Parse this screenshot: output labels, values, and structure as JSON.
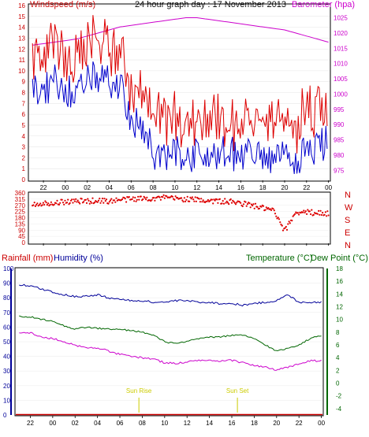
{
  "header": {
    "title": "24 hour graph day : 17 November 2013",
    "left_axis_label": "Windspeed (m/s)",
    "right_axis_label": "Barometer (hpa)"
  },
  "dir_labels": [
    "N",
    "W",
    "S",
    "E",
    "N"
  ],
  "bottom": {
    "rain_label": "Rainfall (mm)",
    "humidity_label": "Humidity (%)",
    "temp_label": "Temperature (°C)",
    "dew_label": "Dew Point (°C)",
    "sunrise_label": "Sun Rise",
    "sunset_label": "Sun Set"
  },
  "colors": {
    "wind_avg": "#0000cc",
    "wind_gust": "#dd0000",
    "barometer": "#cc00cc",
    "direction": "#dd0000",
    "humidity": "#000099",
    "temperature": "#006600",
    "dewpoint": "#cc00cc",
    "rainfall": "#cc0000",
    "sun": "#cccc00"
  },
  "x_tick_labels": [
    "22",
    "00",
    "02",
    "04",
    "06",
    "08",
    "10",
    "12",
    "14",
    "16",
    "18",
    "20",
    "22",
    "00"
  ],
  "chart_data": [
    {
      "type": "line",
      "title": "24 hour graph day : 17 November 2013",
      "ylabel": "Windspeed (m/s)",
      "y2label": "Barometer (hpa)",
      "ylim": [
        0,
        16
      ],
      "y_ticks": [
        0,
        1,
        2,
        3,
        4,
        5,
        6,
        7,
        8,
        9,
        10,
        11,
        12,
        13,
        14,
        15,
        16
      ],
      "y2lim": [
        972,
        1029
      ],
      "y2_ticks": [
        975,
        980,
        985,
        990,
        995,
        1000,
        1005,
        1010,
        1015,
        1020,
        1025
      ],
      "x_hours": [
        -3,
        -2,
        -1,
        0,
        1,
        2,
        3,
        4,
        5,
        6,
        7,
        8,
        9,
        10,
        11,
        12,
        13,
        14,
        15,
        16,
        17,
        18,
        19,
        20,
        21,
        22,
        23,
        24
      ],
      "series": [
        {
          "name": "Windspeed (m/s)",
          "values": [
            8.5,
            8,
            9,
            8.5,
            7.5,
            9,
            9.5,
            9,
            8.5,
            5.5,
            4.5,
            2.5,
            2,
            2.5,
            2,
            2.5,
            2,
            2.5,
            2.5,
            2,
            2.5,
            2,
            1.5,
            2,
            2,
            2.5,
            3,
            3.5
          ]
        },
        {
          "name": "Barometer (hpa)",
          "values": [
            1016,
            1016.5,
            1017,
            1017.5,
            1018,
            1019,
            1020,
            1021,
            1022,
            1022.5,
            1023,
            1023.5,
            1024,
            1024.5,
            1025,
            1025,
            1024.5,
            1024,
            1023.5,
            1023,
            1022.5,
            1022,
            1021.5,
            1021,
            1020,
            1019,
            1018,
            1017
          ]
        }
      ]
    },
    {
      "type": "scatter",
      "title": "",
      "ylabel": "",
      "ylim": [
        0,
        360
      ],
      "y_ticks": [
        0,
        45,
        90,
        135,
        180,
        225,
        270,
        315,
        360
      ],
      "series": [
        {
          "name": "",
          "hours": [
            -3,
            -2,
            -1,
            0,
            1,
            2,
            3,
            4,
            5,
            6,
            7,
            8,
            9,
            10,
            11,
            12,
            13,
            14,
            15,
            16,
            17,
            18,
            19,
            20,
            21,
            22,
            23,
            24
          ],
          "values": [
            280,
            285,
            290,
            295,
            300,
            300,
            305,
            300,
            310,
            315,
            320,
            320,
            325,
            320,
            315,
            310,
            305,
            300,
            295,
            285,
            270,
            250,
            230,
            80,
            220,
            220,
            215,
            210
          ]
        }
      ]
    },
    {
      "type": "line",
      "title": "",
      "ylabel": "Rainfall (mm) / Humidity (%)",
      "ylim": [
        0,
        100
      ],
      "y_ticks": [
        0,
        10,
        20,
        30,
        40,
        50,
        60,
        70,
        80,
        90,
        100
      ],
      "y2label": "Temperature (°C) / Dew Point (°C)",
      "y2lim": [
        -5,
        18
      ],
      "y2_ticks": [
        -4,
        -2,
        0,
        2,
        4,
        6,
        8,
        10,
        12,
        14,
        16,
        18
      ],
      "x_hours": [
        -3,
        -2,
        -1,
        0,
        1,
        2,
        3,
        4,
        5,
        6,
        7,
        8,
        9,
        10,
        11,
        12,
        13,
        14,
        15,
        16,
        17,
        18,
        19,
        20,
        21,
        22,
        23,
        24
      ],
      "series": [
        {
          "name": "Humidity (%)",
          "values": [
            89,
            88,
            86,
            84,
            82,
            81,
            81,
            82,
            80,
            79,
            78,
            78,
            77,
            77,
            78,
            78,
            77,
            77,
            76,
            76,
            75,
            76,
            77,
            78,
            82,
            77,
            77,
            77
          ]
        },
        {
          "name": "Temperature (°C)",
          "values": [
            10.5,
            10.4,
            10,
            9.8,
            9,
            8.5,
            8.8,
            8.6,
            8.5,
            8.4,
            8.3,
            8,
            7.5,
            6.5,
            6.2,
            6.5,
            7,
            7.2,
            7.3,
            7.5,
            7.5,
            7,
            6,
            5,
            5.5,
            6,
            7,
            7.5
          ]
        },
        {
          "name": "Dew Point (°C)",
          "values": [
            8,
            7.9,
            7.2,
            7,
            6.5,
            6,
            5.5,
            5.6,
            5,
            4.5,
            4.2,
            4,
            3.8,
            3.2,
            3.1,
            3.3,
            3.6,
            3.5,
            3.4,
            3.6,
            3.2,
            2.8,
            2.5,
            2,
            2.5,
            3,
            3.5,
            3.5
          ]
        },
        {
          "name": "Rainfall (mm)",
          "values": [
            0,
            0,
            0,
            0,
            0,
            0,
            0,
            0,
            0,
            0,
            0,
            0,
            0,
            0,
            0,
            0,
            0,
            0,
            0,
            0,
            0,
            0,
            0,
            0,
            0,
            0,
            0,
            0
          ]
        }
      ],
      "annotations": [
        "Sun Rise",
        "Sun Set"
      ]
    }
  ]
}
